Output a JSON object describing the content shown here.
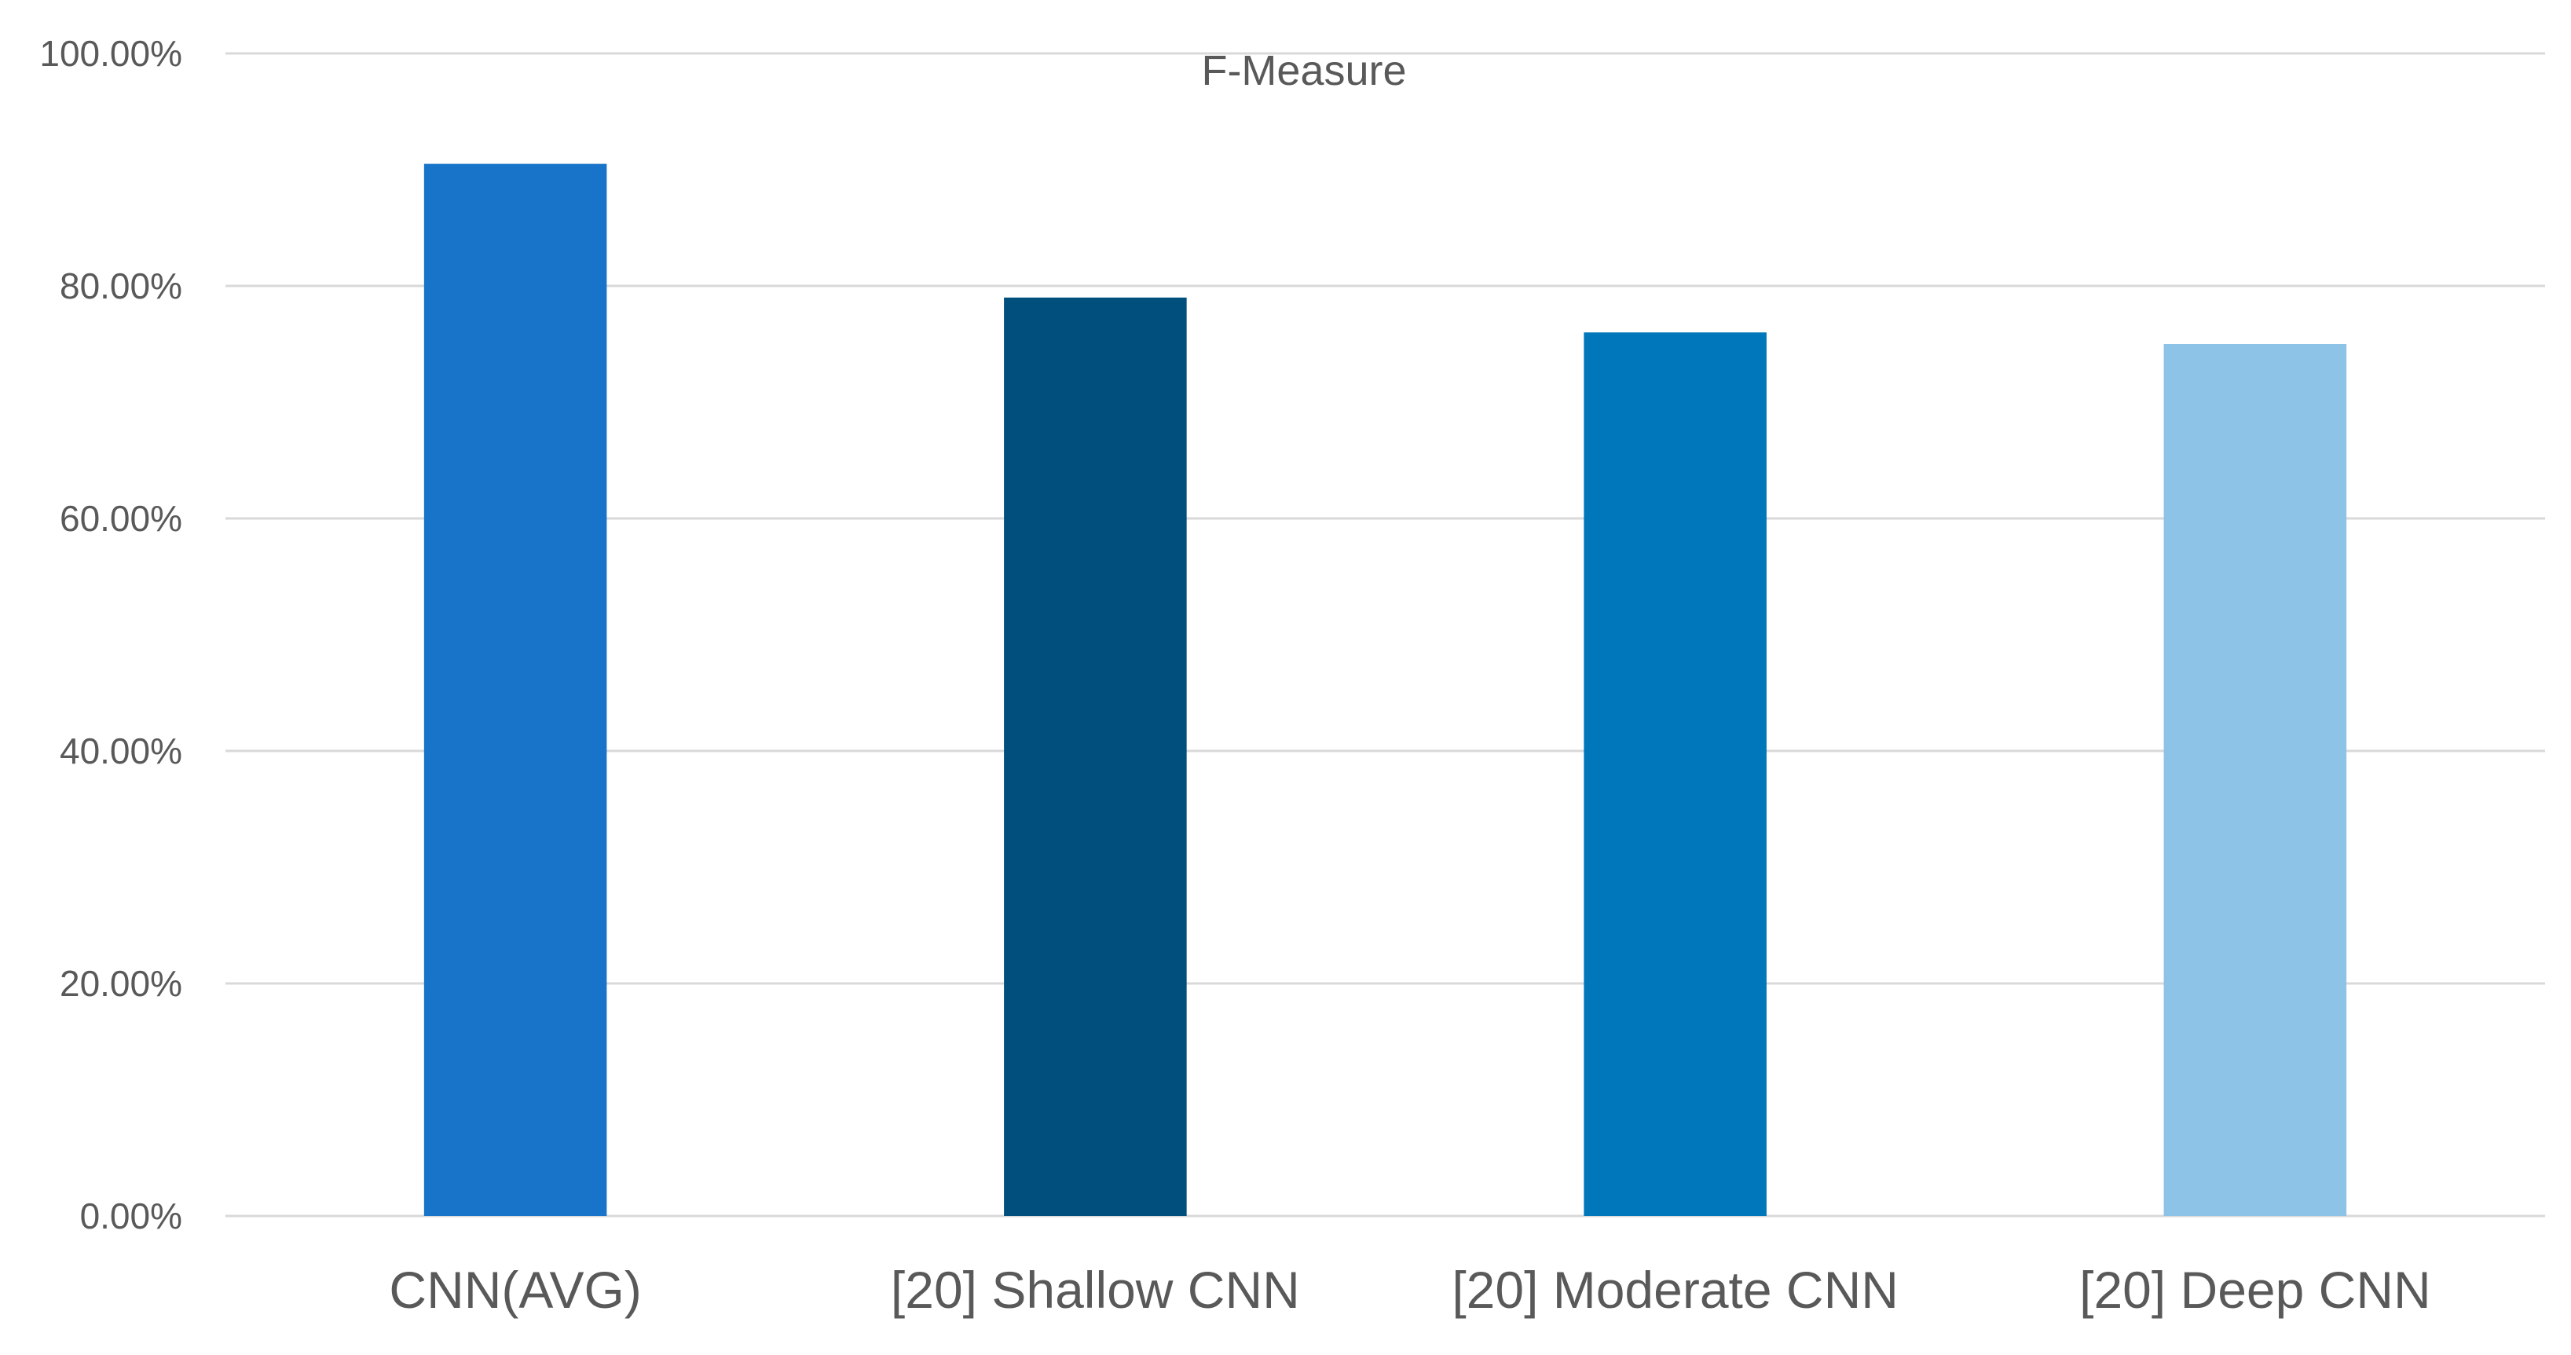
{
  "chart_data": {
    "type": "bar",
    "title": "F-Measure",
    "categories": [
      "CNN(AVG)",
      "[20] Shallow CNN",
      "[20] Moderate CNN",
      "[20] Deep CNN"
    ],
    "series": [
      {
        "values": [
          90.5,
          79.0,
          76.0,
          75.0
        ]
      }
    ],
    "ylim": [
      0,
      100
    ],
    "yticks": [
      0,
      20,
      40,
      60,
      80,
      100
    ],
    "ytick_labels": [
      "0.00%",
      "20.00%",
      "40.00%",
      "60.00%",
      "80.00%",
      "100.00%"
    ],
    "xlabel": "",
    "ylabel": "",
    "grid": true,
    "legend": "none",
    "colors": [
      "#1874C9",
      "#004F7C",
      "#0077BB",
      "#8CC3E6"
    ],
    "gridline_color": "#D9D9D9",
    "text_color": "#595959"
  }
}
